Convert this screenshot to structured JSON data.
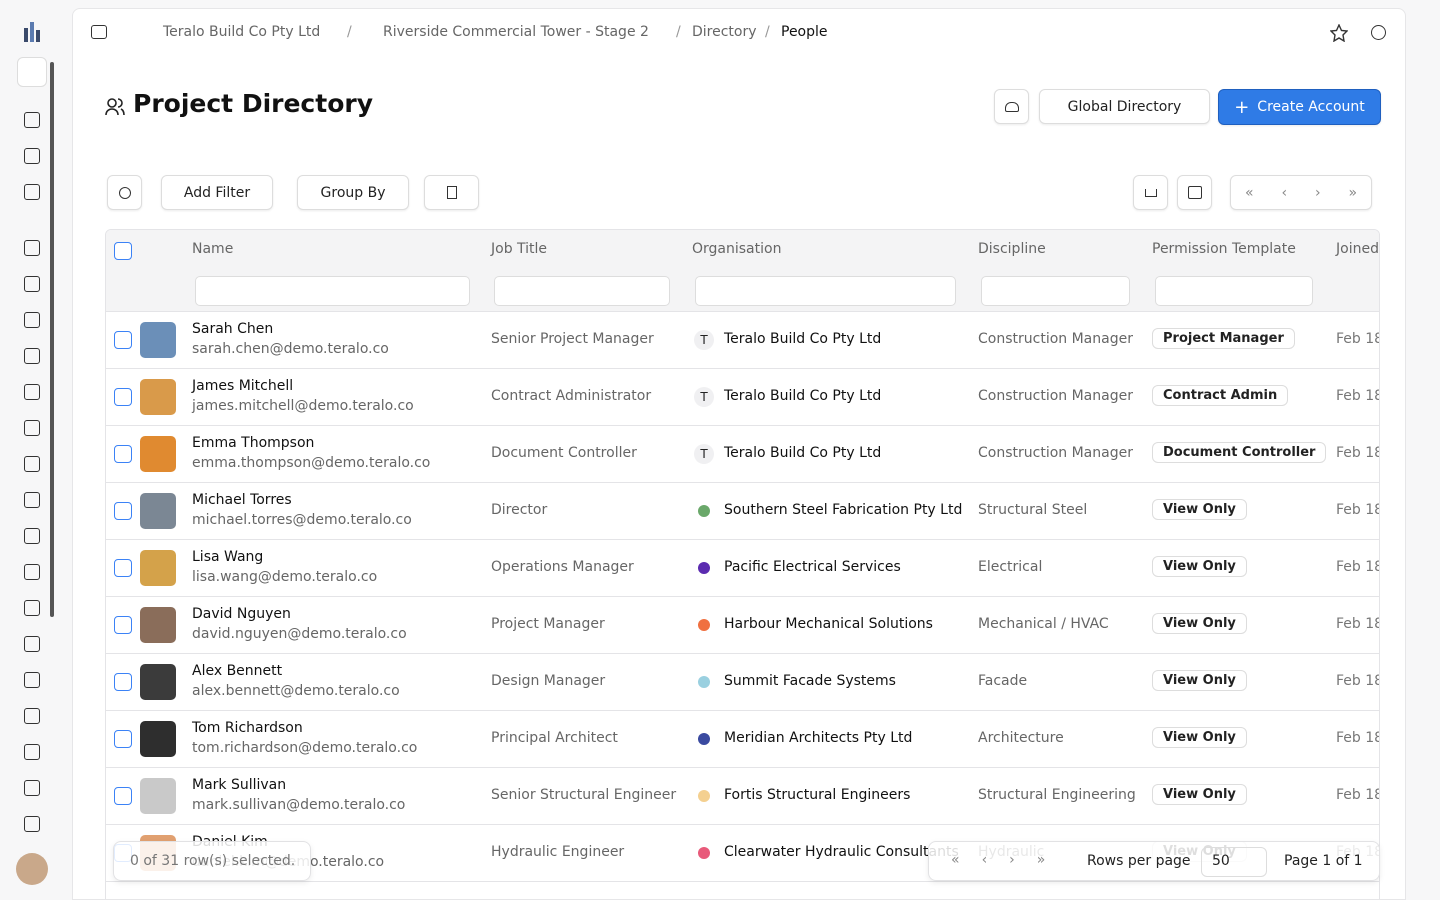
{
  "breadcrumb": [
    "Teralo Build Co Pty Ltd",
    "Riverside Commercial Tower - Stage 2",
    "Directory",
    "People"
  ],
  "header": {
    "title": "Project Directory",
    "buttons": [
      "Global Directory",
      "Create Account"
    ]
  },
  "toolbar": {
    "add_filter": "Add Filter",
    "group_by": "Group By"
  },
  "table": {
    "columns": [
      "Name",
      "Job Title",
      "Organisation",
      "Discipline",
      "Permission Template",
      "Joined"
    ],
    "rows": [
      {
        "name": "Sarah Chen",
        "email": "sarah.chen@demo.teralo.co",
        "job": "Senior Project Manager",
        "badge": "T",
        "org": "Teralo Build Co Pty Ltd",
        "discipline": "Construction Manager",
        "permission": "Project Manager",
        "joined": "Feb 18"
      },
      {
        "name": "James Mitchell",
        "email": "james.mitchell@demo.teralo.co",
        "job": "Contract Administrator",
        "badge": "T",
        "org": "Teralo Build Co Pty Ltd",
        "discipline": "Construction Manager",
        "permission": "Contract Admin",
        "joined": "Feb 18"
      },
      {
        "name": "Emma Thompson",
        "email": "emma.thompson@demo.teralo.co",
        "job": "Document Controller",
        "badge": "T",
        "org": "Teralo Build Co Pty Ltd",
        "discipline": "Construction Manager",
        "permission": "Document Controller",
        "joined": "Feb 18"
      },
      {
        "name": "Michael Torres",
        "email": "michael.torres@demo.teralo.co",
        "job": "Director",
        "org": "Southern Steel Fabrication Pty Ltd",
        "discipline": "Structural Steel",
        "permission": "View Only",
        "joined": "Feb 18"
      },
      {
        "name": "Lisa Wang",
        "email": "lisa.wang@demo.teralo.co",
        "job": "Operations Manager",
        "org": "Pacific Electrical Services",
        "discipline": "Electrical",
        "permission": "View Only",
        "joined": "Feb 18"
      },
      {
        "name": "David Nguyen",
        "email": "david.nguyen@demo.teralo.co",
        "job": "Project Manager",
        "org": "Harbour Mechanical Solutions",
        "discipline": "Mechanical / HVAC",
        "permission": "View Only",
        "joined": "Feb 18"
      },
      {
        "name": "Alex Bennett",
        "email": "alex.bennett@demo.teralo.co",
        "job": "Design Manager",
        "org": "Summit Facade Systems",
        "discipline": "Facade",
        "permission": "View Only",
        "joined": "Feb 18"
      },
      {
        "name": "Tom Richardson",
        "email": "tom.richardson@demo.teralo.co",
        "job": "Principal Architect",
        "org": "Meridian Architects Pty Ltd",
        "discipline": "Architecture",
        "permission": "View Only",
        "joined": "Feb 18"
      },
      {
        "name": "Mark Sullivan",
        "email": "mark.sullivan@demo.teralo.co",
        "job": "Senior Structural Engineer",
        "org": "Fortis Structural Engineers",
        "discipline": "Structural Engineering",
        "permission": "View Only",
        "joined": "Feb 18"
      },
      {
        "name": "Daniel Kim",
        "email": "daniel.kim@demo.teralo.co",
        "job": "Hydraulic Engineer",
        "org": "Clearwater Hydraulic Consultants",
        "discipline": "Hydraulic",
        "permission": "View Only",
        "joined": "Feb 18"
      }
    ]
  },
  "footer": {
    "selected": "0 of 31 row(s) selected.",
    "rows_per_page": "Rows per page",
    "page_size": "50",
    "page": "Page 1 of 1"
  }
}
